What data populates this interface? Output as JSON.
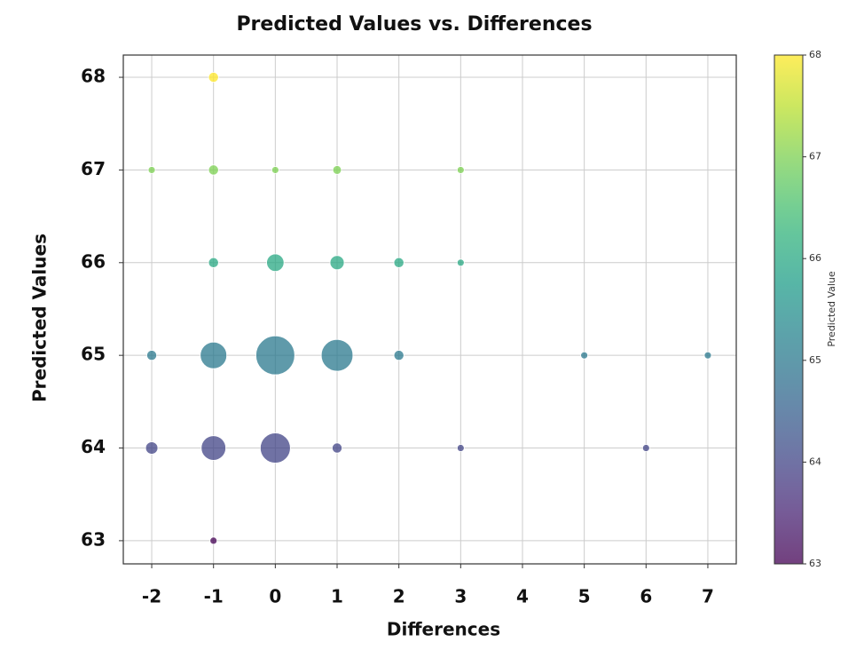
{
  "chart_data": {
    "type": "bubble",
    "title": "Predicted Values vs. Differences",
    "x_label": "Differences",
    "y_label": "Predicted Values",
    "x": [
      -1,
      -2,
      -1,
      0,
      1,
      3,
      -1,
      0,
      1,
      2,
      3,
      -2,
      -1,
      0,
      1,
      2,
      5,
      7,
      -2,
      -1,
      0,
      1,
      3,
      6,
      -1
    ],
    "y": [
      68,
      67,
      67,
      67,
      67,
      67,
      66,
      66,
      66,
      66,
      66,
      65,
      65,
      65,
      65,
      65,
      65,
      65,
      64,
      64,
      64,
      64,
      64,
      64,
      63
    ],
    "sizes": [
      2,
      1,
      2,
      1,
      1.5,
      1,
      2,
      6,
      4,
      2,
      1,
      2,
      14,
      30,
      20,
      2,
      1,
      1,
      3,
      12,
      18,
      2,
      1,
      1,
      1
    ],
    "xlim": [
      -2.46,
      7.46
    ],
    "ylim": [
      62.75,
      68.24
    ],
    "xticks": [
      -2,
      -1,
      0,
      1,
      2,
      3,
      4,
      5,
      6,
      7
    ],
    "yticks": [
      63,
      64,
      65,
      66,
      67,
      68
    ],
    "grid": true,
    "colormap": "viridis",
    "colorbar": {
      "label": "Predicted Value",
      "lim": [
        63,
        68
      ],
      "ticks": [
        63,
        64,
        65,
        66,
        67,
        68
      ]
    }
  }
}
